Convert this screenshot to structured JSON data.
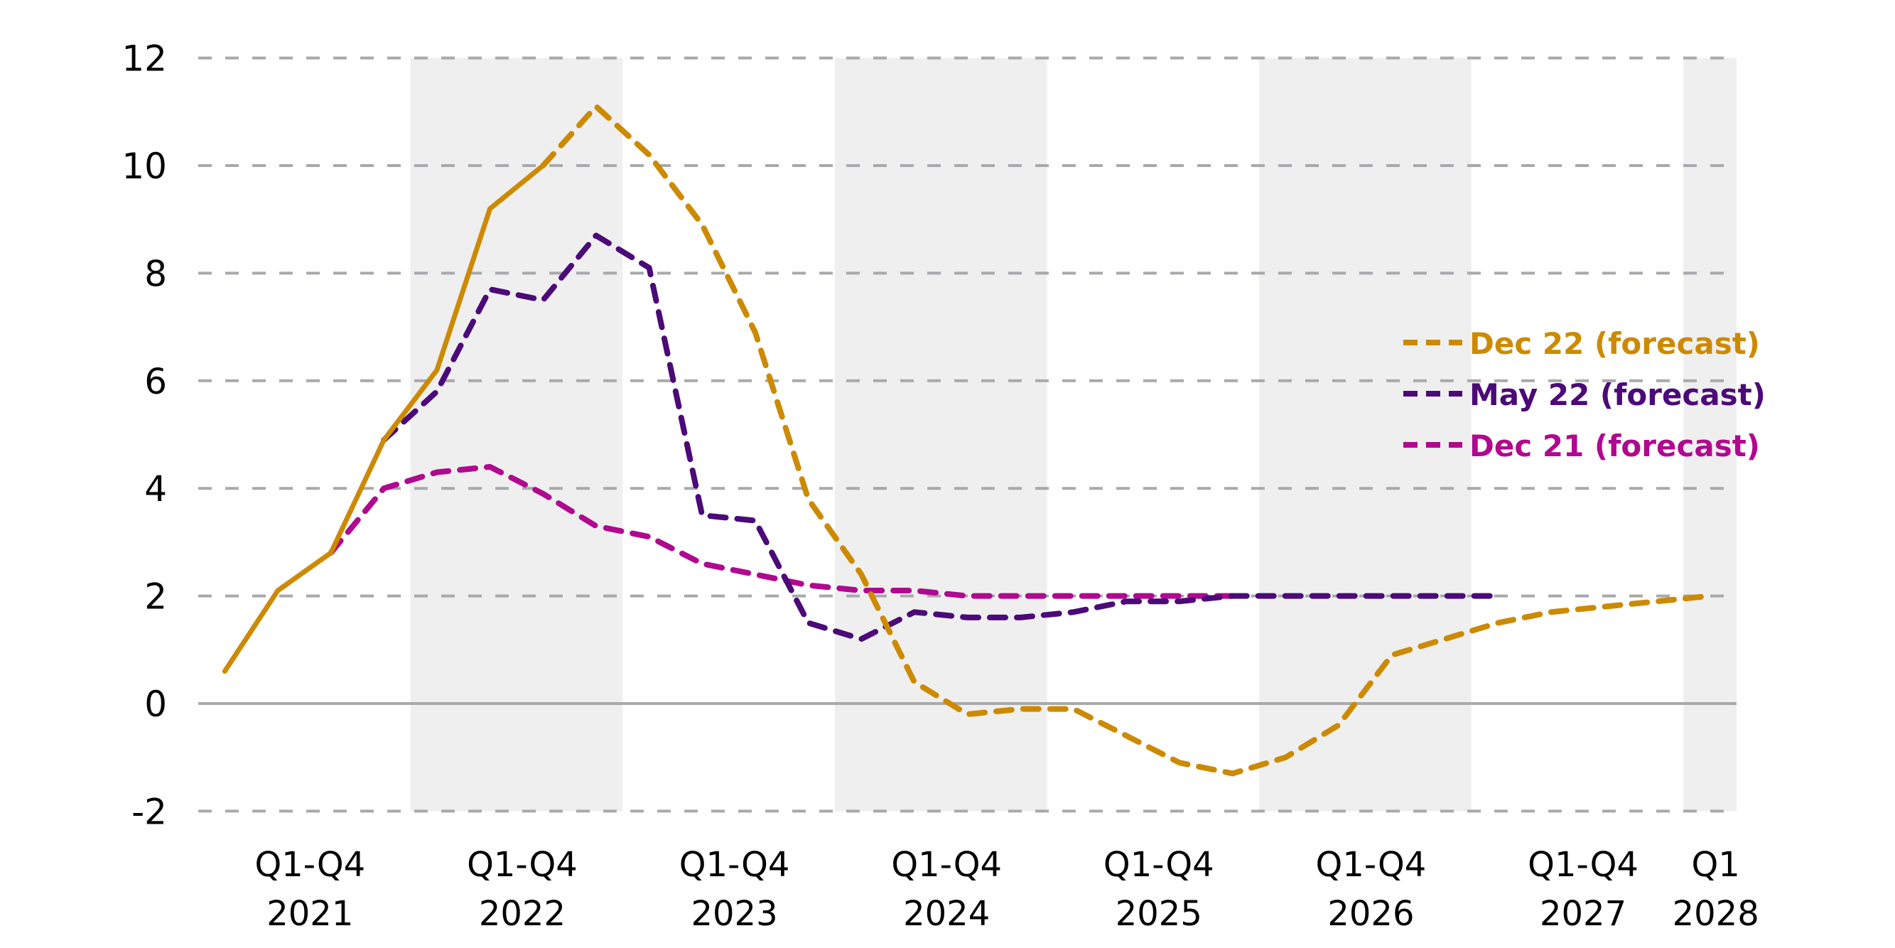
{
  "chart_data": {
    "type": "line",
    "title": "",
    "xlabel": "",
    "ylabel": "",
    "ylim": [
      -2,
      12
    ],
    "yticks": [
      12,
      10,
      8,
      6,
      4,
      2,
      0,
      -2
    ],
    "grid": true,
    "legend_position": "right-middle",
    "x": [
      "2021Q1",
      "2021Q2",
      "2021Q3",
      "2021Q4",
      "2022Q1",
      "2022Q2",
      "2022Q3",
      "2022Q4",
      "2023Q1",
      "2023Q2",
      "2023Q3",
      "2023Q4",
      "2024Q1",
      "2024Q2",
      "2024Q3",
      "2024Q4",
      "2025Q1",
      "2025Q2",
      "2025Q3",
      "2025Q4",
      "2026Q1",
      "2026Q2",
      "2026Q3",
      "2026Q4",
      "2027Q1",
      "2027Q2",
      "2027Q3",
      "2027Q4",
      "2028Q1"
    ],
    "x_tick_groups": [
      {
        "line1": "Q1-Q4",
        "line2": "2021",
        "start": 0,
        "end": 3,
        "shaded": false
      },
      {
        "line1": "Q1-Q4",
        "line2": "2022",
        "start": 4,
        "end": 7,
        "shaded": true
      },
      {
        "line1": "Q1-Q4",
        "line2": "2023",
        "start": 8,
        "end": 11,
        "shaded": false
      },
      {
        "line1": "Q1-Q4",
        "line2": "2024",
        "start": 12,
        "end": 15,
        "shaded": true
      },
      {
        "line1": "Q1-Q4",
        "line2": "2025",
        "start": 16,
        "end": 19,
        "shaded": false
      },
      {
        "line1": "Q1-Q4",
        "line2": "2026",
        "start": 20,
        "end": 23,
        "shaded": true
      },
      {
        "line1": "Q1-Q4",
        "line2": "2027",
        "start": 24,
        "end": 27,
        "shaded": false
      },
      {
        "line1": "Q1",
        "line2": "2028",
        "start": 28,
        "end": 28,
        "shaded": true
      }
    ],
    "series": [
      {
        "name": "Actual",
        "color": "#CC8A00",
        "style": "solid",
        "in_legend": false,
        "start_index": 0,
        "values": [
          0.6,
          2.1,
          2.8,
          4.9,
          6.2,
          9.2,
          10.0
        ]
      },
      {
        "name": "Dec 22 (forecast)",
        "color": "#CC8A00",
        "style": "dashed",
        "in_legend": true,
        "start_index": 6,
        "values": [
          10.0,
          11.1,
          10.2,
          8.9,
          6.9,
          3.8,
          2.4,
          0.4,
          -0.2,
          -0.1,
          -0.1,
          -0.6,
          -1.1,
          -1.3,
          -1.0,
          -0.4,
          0.9,
          1.2,
          1.5,
          1.7,
          1.8,
          1.9,
          2.0
        ]
      },
      {
        "name": "May 22 (forecast)",
        "color": "#4B0A78",
        "style": "dashed",
        "in_legend": true,
        "start_index": 3,
        "values": [
          4.9,
          5.8,
          7.7,
          7.5,
          8.7,
          8.1,
          3.5,
          3.4,
          1.5,
          1.2,
          1.7,
          1.6,
          1.6,
          1.7,
          1.9,
          1.9,
          2.0,
          2.0,
          2.0,
          2.0,
          2.0,
          2.0
        ]
      },
      {
        "name": "Dec 21 (forecast)",
        "color": "#B0088F",
        "style": "dashed",
        "in_legend": true,
        "start_index": 2,
        "values": [
          2.8,
          4.0,
          4.3,
          4.4,
          3.9,
          3.3,
          3.1,
          2.6,
          2.4,
          2.2,
          2.1,
          2.1,
          2.0,
          2.0,
          2.0,
          2.0,
          2.0,
          2.0
        ]
      }
    ]
  },
  "legend": {
    "items": [
      {
        "label": "Dec 22 (forecast)",
        "color": "#CC8A00"
      },
      {
        "label": "May 22 (forecast)",
        "color": "#4B0A78"
      },
      {
        "label": "Dec 21 (forecast)",
        "color": "#B0088F"
      }
    ]
  },
  "style": {
    "grid_color": "#A7A9AC",
    "band_color": "#EFEFEF",
    "zero_line_color": "#A7A9AC"
  }
}
